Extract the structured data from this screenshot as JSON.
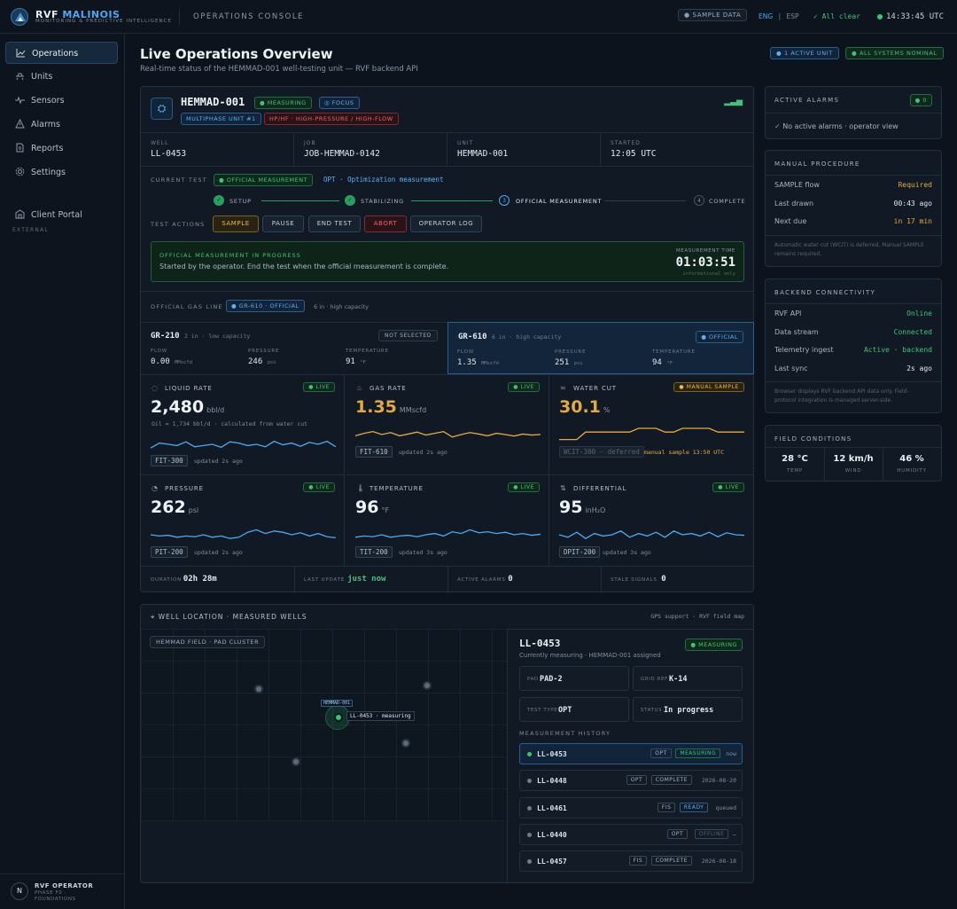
{
  "brand": {
    "name_a": "RVF",
    "name_b": "MALINOIS",
    "subtitle": "MONITORING & PREDICTIVE INTELLIGENCE"
  },
  "header": {
    "console": "OPERATIONS CONSOLE",
    "sample_data": "SAMPLE DATA",
    "lang_en": "ENG",
    "lang_sep": "|",
    "lang_es": "ESP",
    "status": "All clear",
    "clock": "14:33:45 UTC"
  },
  "sidebar": {
    "items": [
      {
        "label": "Operations",
        "icon": "chart-line-icon"
      },
      {
        "label": "Units",
        "icon": "unit-icon"
      },
      {
        "label": "Sensors",
        "icon": "pulse-icon"
      },
      {
        "label": "Alarms",
        "icon": "warning-icon"
      },
      {
        "label": "Reports",
        "icon": "document-icon"
      },
      {
        "label": "Settings",
        "icon": "gear-icon"
      }
    ],
    "external_label": "EXTERNAL",
    "external_items": [
      {
        "label": "Client Portal",
        "icon": "building-icon"
      }
    ],
    "user": {
      "initial": "N",
      "name": "RVF OPERATOR",
      "role": "PHASE F0 · FOUNDATIONS"
    }
  },
  "page": {
    "title": "Live Operations Overview",
    "subtitle": "Real-time status of the HEMMAD-001 well-testing unit — RVF backend API",
    "badge_units": "1 ACTIVE UNIT",
    "badge_systems": "ALL SYSTEMS NOMINAL"
  },
  "unit": {
    "name": "HEMMAD-001",
    "status": "MEASURING",
    "focus": "FOCUS",
    "type": "MULTIPHASE UNIT #1",
    "class": "HP/HF · HIGH-PRESSURE / HIGH-FLOW",
    "meta": [
      {
        "label": "WELL",
        "value": "LL-0453"
      },
      {
        "label": "JOB",
        "value": "JOB-HEMMAD-0142"
      },
      {
        "label": "UNIT",
        "value": "HEMMAD-001"
      },
      {
        "label": "STARTED",
        "value": "12:05 UTC"
      }
    ],
    "current_test_label": "CURRENT TEST",
    "current_test_tag": "OFFICIAL MEASUREMENT",
    "current_test_desc": "OPT · Optimization measurement",
    "steps": [
      {
        "num": "✓",
        "label": "SETUP"
      },
      {
        "num": "✓",
        "label": "STABILIZING"
      },
      {
        "num": "3",
        "label": "OFFICIAL MEASUREMENT"
      },
      {
        "num": "4",
        "label": "COMPLETE"
      }
    ],
    "actions_label": "TEST ACTIONS",
    "actions": [
      "SAMPLE",
      "PAUSE",
      "END TEST",
      "ABORT",
      "OPERATOR LOG"
    ],
    "progress": {
      "title": "OFFICIAL MEASUREMENT IN PROGRESS",
      "text": "Started by the operator. End the test when the official measurement is complete.",
      "time_label": "MEASUREMENT TIME",
      "time": "01:03:51",
      "note": "informational only"
    },
    "gas_line_label": "OFFICIAL GAS LINE",
    "gas_line_tag": "GR-610 · OFFICIAL",
    "gas_line_desc": "6 in · high capacity",
    "gas_lines": [
      {
        "name": "GR-210",
        "cap": "2 in · low capacity",
        "state": "NOT SELECTED",
        "flow": "0.00",
        "flow_unit": "MMscfd",
        "pressure": "246",
        "pressure_unit": "psi",
        "temp": "91",
        "temp_unit": "°F"
      },
      {
        "name": "GR-610",
        "cap": "6 in · high capacity",
        "state": "OFFICIAL",
        "flow": "1.35",
        "flow_unit": "MMscfd",
        "pressure": "251",
        "pressure_unit": "psi",
        "temp": "94",
        "temp_unit": "°F"
      }
    ],
    "gas_cols": {
      "flow": "FLOW",
      "pressure": "PRESSURE",
      "temp": "TEMPERATURE"
    },
    "metrics": [
      {
        "title": "LIQUID RATE",
        "icon": "droplet-icon",
        "badge": "LIVE",
        "value": "2,480",
        "unit": "bbl/d",
        "sub": "Oil = 1,734 bbl/d · calculated from water cut",
        "tag": "FIT-300",
        "updated": "updated 2s ago",
        "color": "#4ea8f0",
        "trend": [
          0.35,
          0.55,
          0.5,
          0.45,
          0.6,
          0.4,
          0.45,
          0.5,
          0.38,
          0.6,
          0.55,
          0.45,
          0.5,
          0.4,
          0.62,
          0.48,
          0.55,
          0.42,
          0.58,
          0.5,
          0.62,
          0.4
        ]
      },
      {
        "title": "GAS RATE",
        "icon": "flame-icon",
        "badge": "LIVE",
        "value": "1.35",
        "unit": "MMscfd",
        "sub": "",
        "tag": "FIT-610",
        "updated": "updated 2s ago",
        "color": "#e3a944",
        "trend": [
          0.45,
          0.55,
          0.62,
          0.5,
          0.58,
          0.45,
          0.52,
          0.6,
          0.48,
          0.55,
          0.62,
          0.4,
          0.5,
          0.58,
          0.52,
          0.45,
          0.55,
          0.5,
          0.44,
          0.52,
          0.48,
          0.5
        ]
      },
      {
        "title": "WATER CUT",
        "icon": "waves-icon",
        "badge": "MANUAL SAMPLE",
        "value": "30.1",
        "unit": "%",
        "sub": "",
        "tag": "WCIT-300 · deferred",
        "updated": "manual sample 13:50 UTC",
        "color": "#e3a944",
        "trend": [
          0.3,
          0.3,
          0.3,
          0.6,
          0.6,
          0.6,
          0.6,
          0.6,
          0.6,
          0.75,
          0.75,
          0.75,
          0.6,
          0.6,
          0.75,
          0.75,
          0.75,
          0.75,
          0.6,
          0.6,
          0.6,
          0.6
        ]
      },
      {
        "title": "PRESSURE",
        "icon": "gauge-icon",
        "badge": "LIVE",
        "value": "262",
        "unit": "psi",
        "sub": "",
        "tag": "PIT-200",
        "updated": "updated 2s ago",
        "color": "#4ea8f0",
        "trend": [
          0.5,
          0.45,
          0.48,
          0.4,
          0.45,
          0.42,
          0.5,
          0.4,
          0.45,
          0.35,
          0.4,
          0.6,
          0.7,
          0.55,
          0.65,
          0.6,
          0.5,
          0.58,
          0.45,
          0.55,
          0.42,
          0.38
        ]
      },
      {
        "title": "TEMPERATURE",
        "icon": "thermometer-icon",
        "badge": "LIVE",
        "value": "96",
        "unit": "°F",
        "sub": "",
        "tag": "TIT-200",
        "updated": "updated 3s ago",
        "color": "#4ea8f0",
        "trend": [
          0.4,
          0.45,
          0.42,
          0.5,
          0.4,
          0.45,
          0.48,
          0.42,
          0.5,
          0.55,
          0.45,
          0.62,
          0.55,
          0.7,
          0.58,
          0.62,
          0.55,
          0.6,
          0.5,
          0.55,
          0.48,
          0.52
        ]
      },
      {
        "title": "DIFFERENTIAL",
        "icon": "differential-icon",
        "badge": "LIVE",
        "value": "95",
        "unit": "inH₂O",
        "sub": "",
        "tag": "DPIT-200",
        "updated": "updated 3s ago",
        "color": "#4ea8f0",
        "trend": [
          0.5,
          0.4,
          0.6,
          0.35,
          0.55,
          0.45,
          0.5,
          0.65,
          0.4,
          0.55,
          0.45,
          0.6,
          0.4,
          0.65,
          0.5,
          0.55,
          0.45,
          0.6,
          0.42,
          0.58,
          0.5,
          0.48
        ]
      }
    ],
    "footer_stats": [
      {
        "label": "DURATION",
        "value": "02h 28m",
        "color": "#e2e9f0"
      },
      {
        "label": "LAST UPDATE",
        "value": "just now",
        "color": "#43c17a"
      },
      {
        "label": "ACTIVE ALARMS",
        "value": "0",
        "color": "#e2e9f0"
      },
      {
        "label": "STALE SIGNALS",
        "value": "0",
        "color": "#e2e9f0"
      }
    ]
  },
  "alarms": {
    "title": "ACTIVE ALARMS",
    "count": "0",
    "empty": "No active alarms · operator view"
  },
  "manual": {
    "title": "MANUAL PROCEDURE",
    "rows": [
      {
        "label": "SAMPLE flow",
        "value": "Required",
        "color": "#e3a944"
      },
      {
        "label": "Last drawn",
        "value": "00:43 ago",
        "color": "#e2e9f0"
      },
      {
        "label": "Next due",
        "value": "in 17 min",
        "color": "#e3a944"
      }
    ],
    "note": "Automatic water cut (WCIT) is deferred. Manual SAMPLE remains required."
  },
  "backend": {
    "title": "BACKEND CONNECTIVITY",
    "rows": [
      {
        "label": "RVF API",
        "value": "Online",
        "color": "#43c17a"
      },
      {
        "label": "Data stream",
        "value": "Connected",
        "color": "#43c17a"
      },
      {
        "label": "Telemetry ingest",
        "value": "Active · backend",
        "color": "#43c17a"
      },
      {
        "label": "Last sync",
        "value": "2s ago",
        "color": "#e2e9f0"
      }
    ],
    "note": "Browser displays RVF backend API data only. Field-protocol integration is managed server-side."
  },
  "field": {
    "title": "FIELD CONDITIONS",
    "items": [
      {
        "value": "28 °C",
        "label": "TEMP"
      },
      {
        "value": "12 km/h",
        "label": "WIND"
      },
      {
        "value": "46 %",
        "label": "HUMIDITY"
      }
    ]
  },
  "map": {
    "title": "WELL LOCATION · MEASURED WELLS",
    "right": "GPS support · RVF field map",
    "cluster": "HEMMAD FIELD · PAD CLUSTER",
    "unit_label": "HEMMAD-001",
    "well_label": "LL-0453 · measuring",
    "well": {
      "name": "LL-0453",
      "status": "MEASURING",
      "sub": "Currently measuring · HEMMAD-001 assigned",
      "info": [
        {
          "label": "PAD",
          "value": "PAD-2"
        },
        {
          "label": "GRID REF",
          "value": "K-14"
        },
        {
          "label": "TEST TYPE",
          "value": "OPT"
        },
        {
          "label": "STATUS",
          "value": "In progress"
        }
      ]
    },
    "history_title": "MEASUREMENT HISTORY",
    "history": [
      {
        "name": "LL-0453",
        "type": "OPT",
        "state": "MEASURING",
        "date": "now",
        "dot": "#43c17a",
        "stateColor": "#43c17a"
      },
      {
        "name": "LL-0448",
        "type": "OPT",
        "state": "COMPLETE",
        "date": "2026-08-20",
        "dot": "#6f7c89",
        "stateColor": "#a5b3c1"
      },
      {
        "name": "LL-0461",
        "type": "FIS",
        "state": "READY",
        "date": "queued",
        "dot": "#6f7c89",
        "stateColor": "#5bb0f5"
      },
      {
        "name": "LL-0440",
        "type": "OPT",
        "state": "OFFLINE",
        "date": "—",
        "dot": "#6f7c89",
        "stateColor": "#56636f"
      },
      {
        "name": "LL-0457",
        "type": "FIS",
        "state": "COMPLETE",
        "date": "2026-08-18",
        "dot": "#6f7c89",
        "stateColor": "#a5b3c1"
      }
    ]
  }
}
